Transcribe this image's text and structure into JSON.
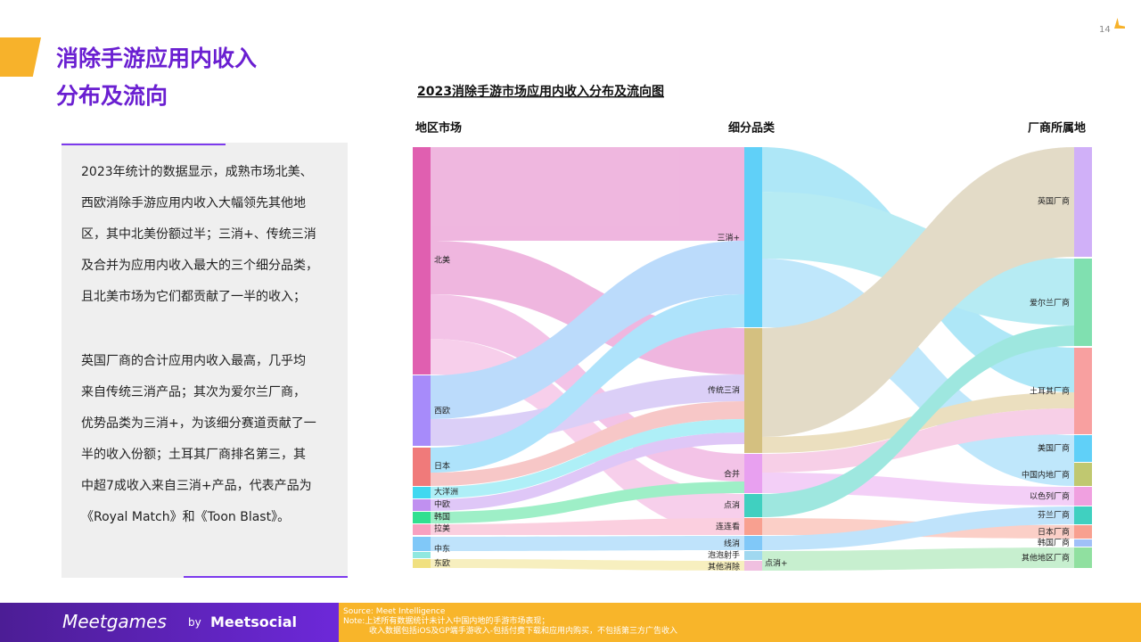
{
  "header": {
    "title_lines": [
      "消除手游应用内收入",
      "分布及流向"
    ],
    "page_number": "14"
  },
  "text_box": {
    "paragraph_1": [
      "2023年统计的数据显示，成熟市场北美、",
      "西欧消除手游应用内收入大幅领先其他地",
      "区，其中北美份额过半；三消+、传统三消",
      "及合并为应用内收入最大的三个细分品类，",
      "且北美市场为它们都贡献了一半的收入；"
    ],
    "paragraph_2": [
      "英国厂商的合计应用内收入最高，几乎均",
      "来自传统三消产品；其次为爱尔兰厂商，",
      "优势品类为三消+，为该细分赛道贡献了一",
      "半的收入份额；土耳其厂商排名第三，其",
      "中超7成收入来自三消+产品，代表产品为",
      "《Royal Match》和《Toon Blast》。"
    ]
  },
  "diagram": {
    "title": "2023消除手游市场应用内收入分布及流向图",
    "columns": [
      "地区市场",
      "细分品类",
      "厂商所属地"
    ],
    "regions": [
      "北美",
      "西欧",
      "日本",
      "大洋洲",
      "中欧",
      "韩国",
      "拉美",
      "中东",
      "东欧"
    ],
    "categories": [
      "三消+",
      "传统三消",
      "合并",
      "点消",
      "连连看",
      "线消",
      "泡泡射手",
      "其他消除",
      "点消+"
    ],
    "vendors": [
      "英国厂商",
      "爱尔兰厂商",
      "土耳其厂商",
      "美国厂商",
      "中国内地厂商",
      "以色列厂商",
      "芬兰厂商",
      "日本厂商",
      "韩国厂商",
      "其他地区厂商"
    ]
  },
  "footer": {
    "brand": "Meetgames",
    "by": "by",
    "company": "Meetsocial",
    "source_lines": [
      "Source: Meet Intelligence",
      "Note:上述所有数据统计未计入中国内地的手游市场表现；",
      "收入数据包括iOS及GP端手游收入-包括付费下载和应用内购买，不包括第三方广告收入"
    ]
  }
}
